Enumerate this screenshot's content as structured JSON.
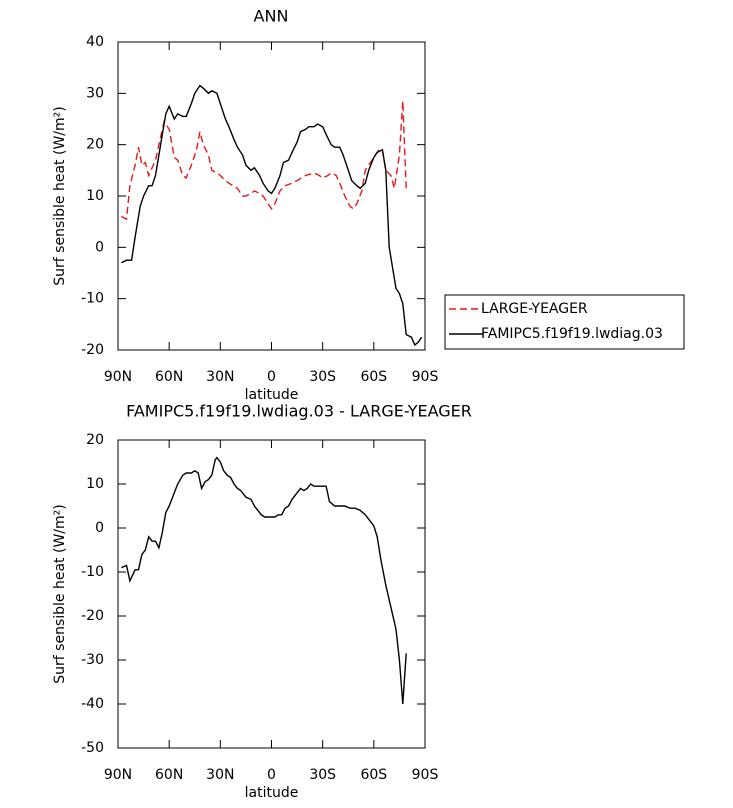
{
  "chart_data": [
    {
      "type": "line",
      "title": "ANN",
      "x_label": "latitude",
      "y_label": "Surf sensible heat (W/m²)",
      "xlim": [
        90,
        -90
      ],
      "xticks": [
        {
          "value": 90,
          "label": "90N"
        },
        {
          "value": 60,
          "label": "60N"
        },
        {
          "value": 30,
          "label": "30N"
        },
        0,
        {
          "value": -30,
          "label": "30S"
        },
        {
          "value": -60,
          "label": "60S"
        },
        {
          "value": -90,
          "label": "90S"
        }
      ],
      "ylim": [
        -20,
        40
      ],
      "yticks": [
        -20,
        -10,
        0,
        10,
        20,
        30,
        40
      ],
      "legend": "right",
      "series": [
        {
          "name": "LARGE-YEAGER",
          "color": "#e41a1c",
          "line_style": "dashed",
          "x": [
            88,
            85,
            83,
            80,
            78,
            76,
            74,
            72,
            70,
            68,
            66,
            63,
            60,
            57,
            55,
            52,
            50,
            47,
            44,
            42,
            40,
            37,
            35,
            32,
            30,
            27,
            25,
            20,
            17,
            15,
            12,
            10,
            7,
            5,
            3,
            0,
            -2,
            -5,
            -8,
            -12,
            -15,
            -20,
            -25,
            -28,
            -30,
            -33,
            -35,
            -38,
            -40,
            -43,
            -46,
            -48,
            -50,
            -53,
            -55,
            -57,
            -60,
            -63,
            -65,
            -67,
            -70,
            -72,
            -75,
            -77,
            -79
          ],
          "values": [
            6,
            5.5,
            12,
            16,
            19.5,
            16,
            16.5,
            14,
            15.5,
            17,
            20,
            24.5,
            23,
            17.5,
            17,
            14,
            13.5,
            16,
            19,
            22.5,
            20,
            18,
            15,
            14.5,
            14,
            13,
            12.5,
            11.5,
            10,
            10,
            10.5,
            11,
            10.5,
            10,
            9,
            7.5,
            8.5,
            11,
            12,
            12.5,
            13,
            14,
            14.5,
            14,
            13.5,
            14,
            14.5,
            14,
            12.5,
            10,
            8,
            7.5,
            8.5,
            11,
            15,
            16,
            17.5,
            19,
            19,
            15,
            14,
            11.5,
            18,
            28.5,
            11.5
          ]
        },
        {
          "name": "FAMIPC5.f19f19.lwdiag.03",
          "color": "#000000",
          "line_style": "solid",
          "x": [
            88,
            85,
            82,
            80,
            77,
            75,
            72,
            70,
            68,
            65,
            62,
            60,
            57,
            55,
            52,
            50,
            47,
            45,
            42,
            40,
            37,
            35,
            32,
            30,
            27,
            25,
            22,
            20,
            17,
            15,
            12,
            10,
            7,
            5,
            2,
            0,
            -2,
            -5,
            -7,
            -10,
            -12,
            -15,
            -17,
            -20,
            -22,
            -25,
            -27,
            -30,
            -32,
            -35,
            -37,
            -40,
            -42,
            -45,
            -47,
            -50,
            -52,
            -55,
            -57,
            -60,
            -62,
            -65,
            -67,
            -69,
            -71,
            -73,
            -75,
            -77,
            -79,
            -82,
            -84,
            -86,
            -88
          ],
          "values": [
            -3,
            -2.5,
            -2.5,
            2,
            8,
            10,
            12,
            12,
            14,
            20,
            26,
            27.5,
            25,
            26,
            25.5,
            25.5,
            28,
            30,
            31.5,
            31,
            30,
            30.5,
            30,
            28,
            25,
            23.5,
            21,
            19.5,
            18,
            16,
            15,
            15.5,
            14,
            12.5,
            11,
            10.5,
            11.5,
            14,
            16.5,
            17,
            18.5,
            20.5,
            22.5,
            23,
            23.5,
            23.5,
            24,
            23.5,
            22,
            20,
            19.5,
            19.5,
            18,
            15,
            13,
            12,
            11.5,
            12.5,
            15,
            17.5,
            18.5,
            19,
            15,
            0,
            -4,
            -8,
            -9,
            -11,
            -17,
            -17.5,
            -19,
            -18.5,
            -17.5
          ]
        }
      ]
    },
    {
      "type": "line",
      "title": "FAMIPC5.f19f19.lwdiag.03 - LARGE-YEAGER",
      "x_label": "latitude",
      "y_label": "Surf sensible heat (W/m²)",
      "xlim": [
        90,
        -90
      ],
      "xticks": [
        {
          "value": 90,
          "label": "90N"
        },
        {
          "value": 60,
          "label": "60N"
        },
        {
          "value": 30,
          "label": "30N"
        },
        0,
        {
          "value": -30,
          "label": "30S"
        },
        {
          "value": -60,
          "label": "60S"
        },
        {
          "value": -90,
          "label": "90S"
        }
      ],
      "ylim": [
        -50,
        20
      ],
      "yticks": [
        -50,
        -40,
        -30,
        -20,
        -10,
        0,
        10,
        20
      ],
      "color": "#000000",
      "x": [
        88,
        85,
        83,
        80,
        78,
        76,
        74,
        72,
        70,
        68,
        66,
        64,
        62,
        60,
        57,
        55,
        52,
        50,
        47,
        45,
        43,
        41,
        39,
        37,
        35,
        33,
        32,
        30,
        28,
        26,
        24,
        22,
        20,
        18,
        15,
        12,
        10,
        8,
        6,
        4,
        2,
        0,
        -2,
        -4,
        -6,
        -8,
        -10,
        -12,
        -15,
        -17,
        -19,
        -21,
        -23,
        -25,
        -27,
        -30,
        -32,
        -34,
        -37,
        -40,
        -43,
        -46,
        -49,
        -52,
        -55,
        -58,
        -60,
        -62,
        -64,
        -67,
        -70,
        -73,
        -75,
        -77,
        -79
      ],
      "values": [
        -9,
        -8.5,
        -12,
        -9.5,
        -9.5,
        -6,
        -5,
        -2,
        -3,
        -3,
        -4.5,
        -1,
        3.5,
        5,
        8,
        10,
        12,
        12.5,
        12.5,
        13,
        12.5,
        9,
        10.5,
        11,
        12,
        15.5,
        16,
        15,
        13,
        12,
        11.5,
        10,
        9,
        8.5,
        7,
        6.5,
        5,
        4,
        3,
        2.5,
        2.5,
        2.5,
        2.5,
        3,
        3,
        4.5,
        5,
        6.5,
        8,
        9,
        8.5,
        9,
        10,
        9.5,
        9.5,
        9.5,
        9.5,
        6,
        5,
        5,
        5,
        4.5,
        4.5,
        4,
        3,
        1.5,
        0.5,
        -2,
        -7,
        -13,
        -18,
        -23,
        -30,
        -40,
        -28.5
      ]
    }
  ]
}
